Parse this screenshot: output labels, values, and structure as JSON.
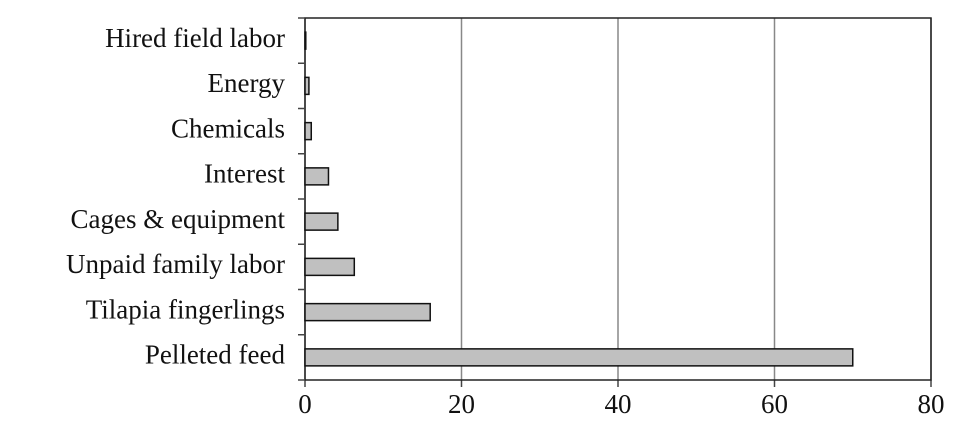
{
  "chart_data": {
    "type": "bar",
    "orientation": "horizontal",
    "categories": [
      "Hired field labor",
      "Energy",
      "Chemicals",
      "Interest",
      "Cages & equipment",
      "Unpaid family labor",
      "Tilapia fingerlings",
      "Pelleted feed"
    ],
    "values": [
      0.1,
      0.5,
      0.8,
      3,
      4.2,
      6.3,
      16,
      70
    ],
    "color": "#c0c0c0",
    "xlim": [
      0,
      80
    ],
    "xticks": [
      0,
      20,
      40,
      60,
      80
    ],
    "grid": true
  }
}
